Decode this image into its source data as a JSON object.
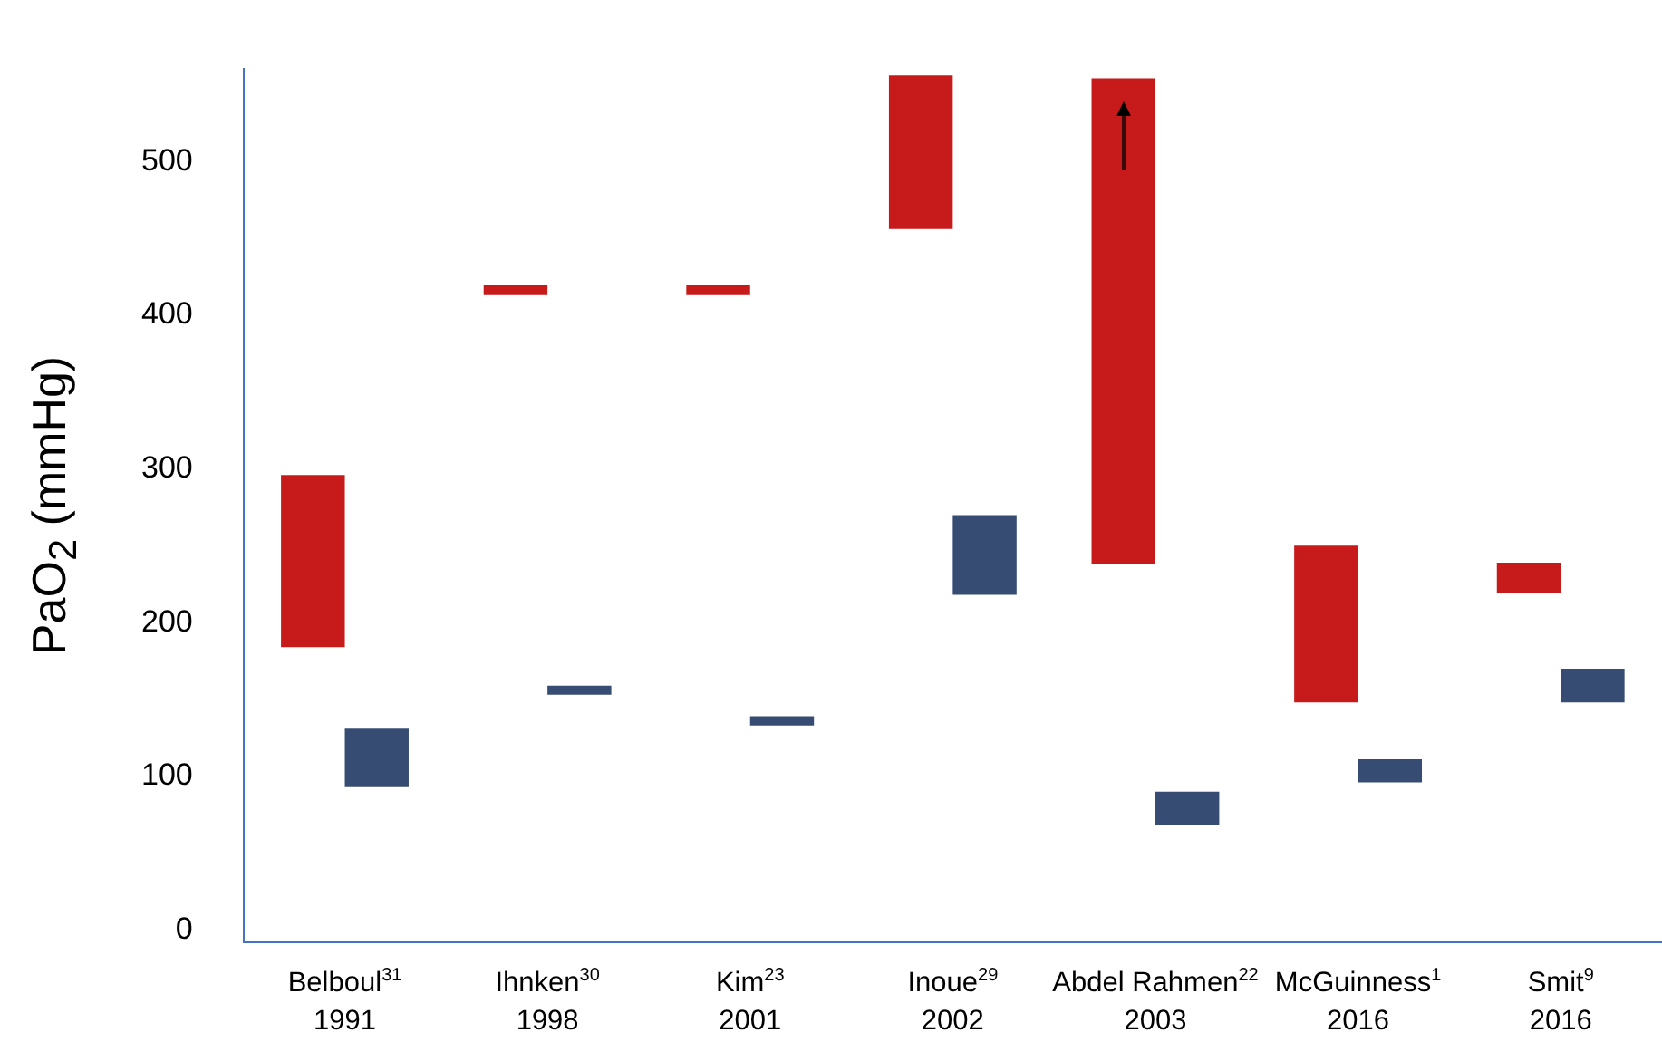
{
  "chart_data": {
    "type": "bar",
    "ylabel": "PaO$_{2}$ (mmHg)",
    "categories": [
      "Belboul$^{31}$\n1991",
      "Ihnken$^{30}$\n1998",
      "Kim$^{23}$\n2001",
      "Inoue$^{29}$\n2002",
      "Abdel Rahmen$^{22}$\n2003",
      "McGuinness$^{1}$\n2016",
      "Smit$^{9}$\n2016"
    ],
    "series": [
      {
        "color": "#c61a1b",
        "base": [
          184,
          413,
          413,
          456,
          238,
          148,
          219
        ],
        "values": [
          112,
          7,
          7,
          100,
          316,
          102,
          20
        ]
      },
      {
        "color": "#374c73",
        "base": [
          93,
          153,
          133,
          218,
          68,
          96,
          148
        ],
        "values": [
          38,
          6,
          6,
          52,
          22,
          15,
          22
        ]
      }
    ],
    "ylim": [
      -8,
      560
    ],
    "yticks": [
      0,
      100,
      200,
      300,
      400,
      500
    ],
    "grid": false,
    "legend": false
  }
}
